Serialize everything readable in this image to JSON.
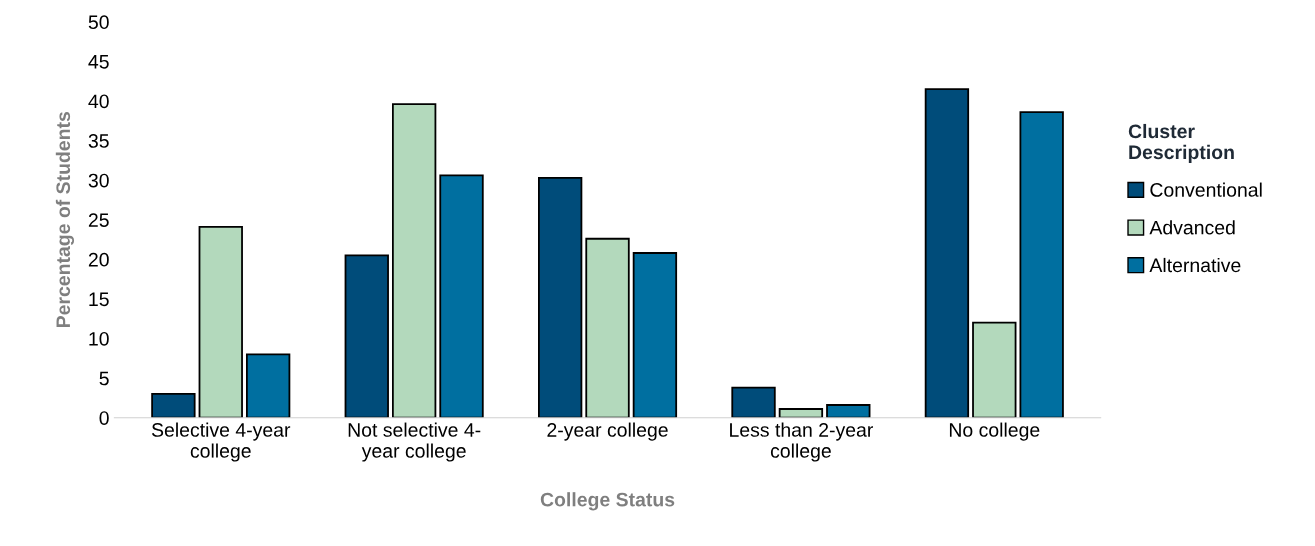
{
  "chart_data": {
    "type": "bar",
    "xlabel": "College Status",
    "ylabel": "Percentage of Students",
    "legend_title": "Cluster\nDescription",
    "categories": [
      "Selective 4-year\ncollege",
      "Not selective 4-\nyear college",
      "2-year college",
      "Less than 2-year\ncollege",
      "No college"
    ],
    "series": [
      {
        "name": "Conventional",
        "color": "#004c7a",
        "values": [
          3.0,
          20.5,
          30.3,
          3.8,
          41.5
        ]
      },
      {
        "name": "Advanced",
        "color": "#b3d9bc",
        "values": [
          24.1,
          39.6,
          22.6,
          1.1,
          12.0
        ]
      },
      {
        "name": "Alternative",
        "color": "#006fa0",
        "values": [
          8.0,
          30.6,
          20.8,
          1.6,
          38.6
        ]
      }
    ],
    "ylim": [
      0,
      50
    ],
    "yticks": [
      0,
      5,
      10,
      15,
      20,
      25,
      30,
      35,
      40,
      45,
      50
    ],
    "grid": false,
    "legend": "right"
  }
}
